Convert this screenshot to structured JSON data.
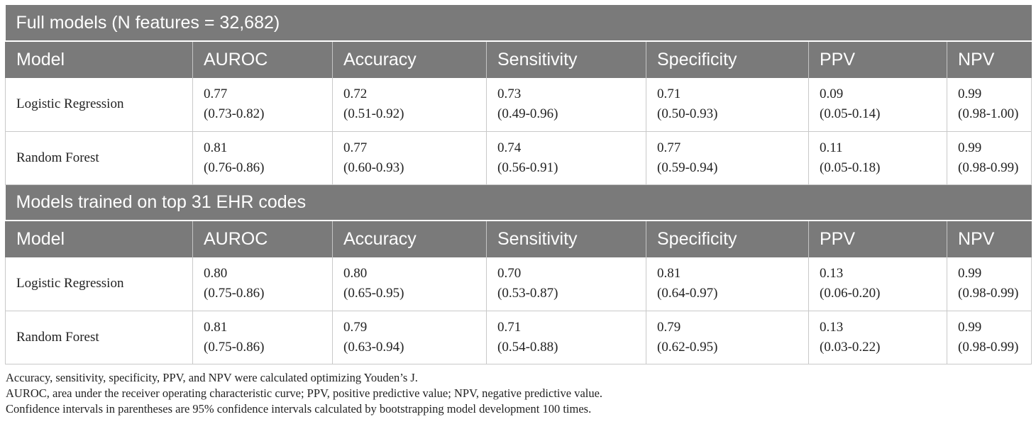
{
  "table": {
    "columns": [
      "Model",
      "AUROC",
      "Accuracy",
      "Sensitivity",
      "Specificity",
      "PPV",
      "NPV"
    ],
    "sections": [
      {
        "title": "Full models (N features = 32,682)",
        "rows": [
          {
            "model": "Logistic Regression",
            "values": [
              {
                "value": "0.77",
                "ci": "(0.73-0.82)"
              },
              {
                "value": "0.72",
                "ci": "(0.51-0.92)"
              },
              {
                "value": "0.73",
                "ci": "(0.49-0.96)"
              },
              {
                "value": "0.71",
                "ci": "(0.50-0.93)"
              },
              {
                "value": "0.09",
                "ci": "(0.05-0.14)"
              },
              {
                "value": "0.99",
                "ci": "(0.98-1.00)"
              }
            ]
          },
          {
            "model": "Random Forest",
            "values": [
              {
                "value": "0.81",
                "ci": "(0.76-0.86)"
              },
              {
                "value": "0.77",
                "ci": "(0.60-0.93)"
              },
              {
                "value": "0.74",
                "ci": "(0.56-0.91)"
              },
              {
                "value": "0.77",
                "ci": "(0.59-0.94)"
              },
              {
                "value": "0.11",
                "ci": "(0.05-0.18)"
              },
              {
                "value": "0.99",
                "ci": "(0.98-0.99)"
              }
            ]
          }
        ]
      },
      {
        "title": "Models trained on top 31 EHR codes",
        "rows": [
          {
            "model": "Logistic Regression",
            "values": [
              {
                "value": "0.80",
                "ci": "(0.75-0.86)"
              },
              {
                "value": "0.80",
                "ci": "(0.65-0.95)"
              },
              {
                "value": "0.70",
                "ci": "(0.53-0.87)"
              },
              {
                "value": "0.81",
                "ci": "(0.64-0.97)"
              },
              {
                "value": "0.13",
                "ci": "(0.06-0.20)"
              },
              {
                "value": "0.99",
                "ci": "(0.98-0.99)"
              }
            ]
          },
          {
            "model": "Random Forest",
            "values": [
              {
                "value": "0.81",
                "ci": "(0.75-0.86)"
              },
              {
                "value": "0.79",
                "ci": "(0.63-0.94)"
              },
              {
                "value": "0.71",
                "ci": "(0.54-0.88)"
              },
              {
                "value": "0.79",
                "ci": "(0.62-0.95)"
              },
              {
                "value": "0.13",
                "ci": "(0.03-0.22)"
              },
              {
                "value": "0.99",
                "ci": "(0.98-0.99)"
              }
            ]
          }
        ]
      }
    ]
  },
  "notes": [
    "Accuracy, sensitivity, specificity, PPV, and NPV were calculated optimizing Youden’s J.",
    "AUROC, area under the receiver operating characteristic curve; PPV, positive predictive value; NPV, negative predictive value.",
    "Confidence intervals in parentheses are 95% confidence intervals calculated by bootstrapping model development 100 times."
  ],
  "colors": {
    "header_bg": "#7a7a7a",
    "header_text": "#ffffff",
    "body_text": "#222222",
    "grid": "#c9c9c9"
  }
}
